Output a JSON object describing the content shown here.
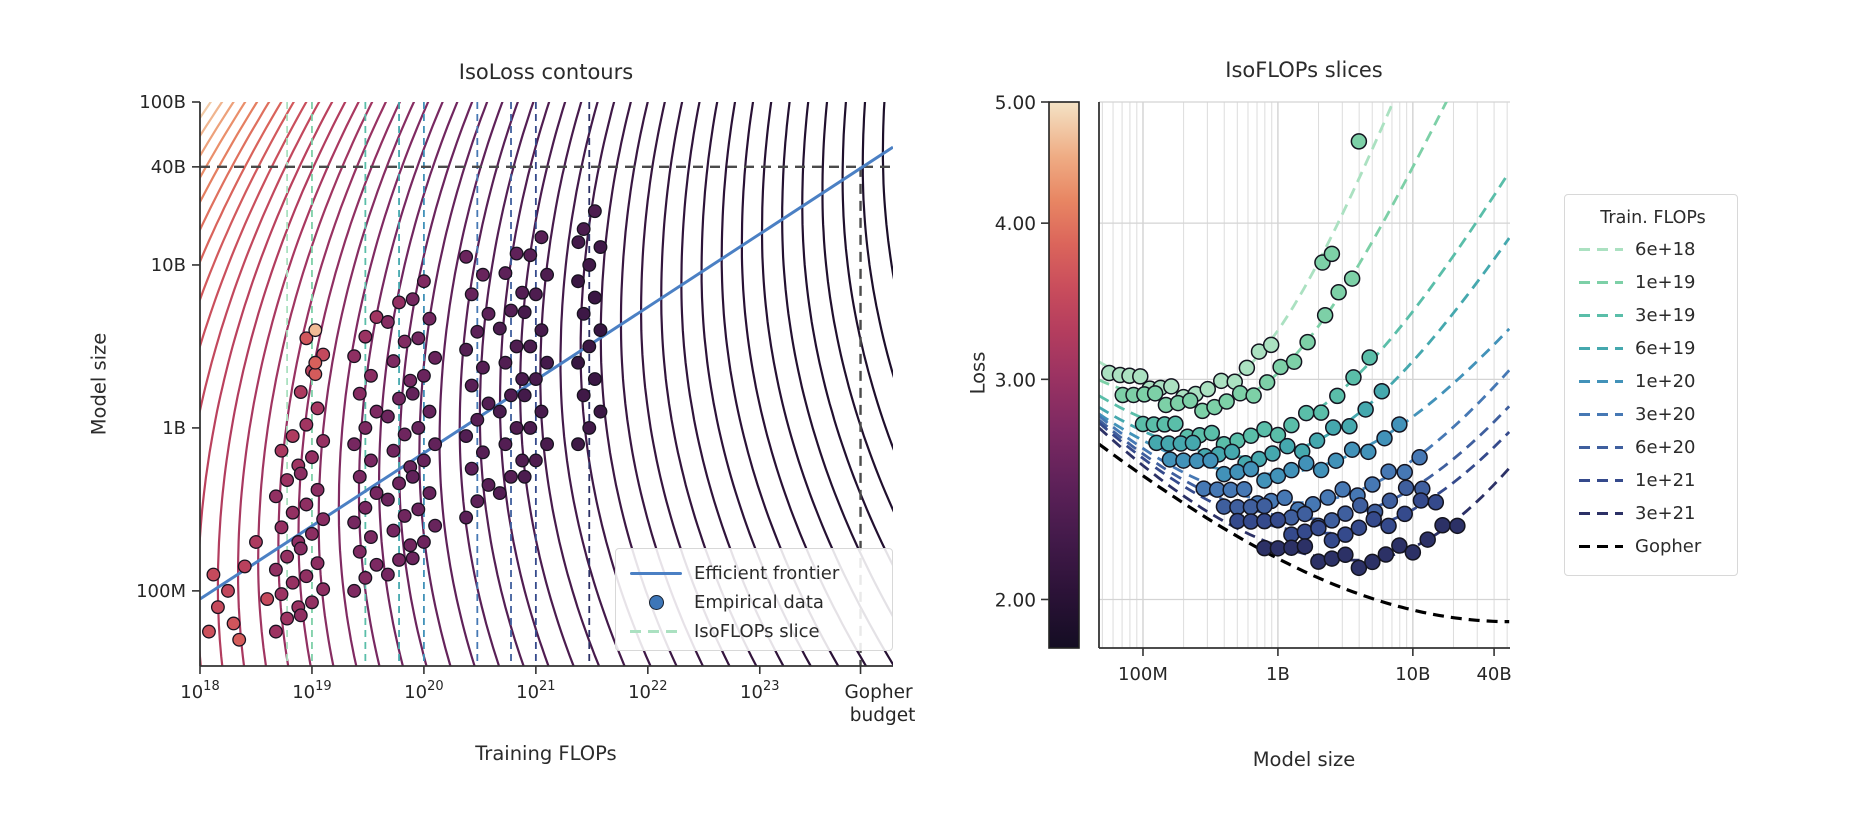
{
  "figure": {
    "background": "#ffffff"
  },
  "chart_data": [
    {
      "type": "contour-scatter",
      "title": "IsoLoss contours",
      "xlabel": "Training FLOPs",
      "ylabel": "Model size",
      "xlim_log10": [
        18.0,
        24.19
      ],
      "ylim_log10": [
        7.539,
        11.0
      ],
      "x_ticks": [
        {
          "log": 18,
          "base": "10",
          "exp": "18"
        },
        {
          "log": 19,
          "base": "10",
          "exp": "19"
        },
        {
          "log": 20,
          "base": "10",
          "exp": "20"
        },
        {
          "log": 21,
          "base": "10",
          "exp": "21"
        },
        {
          "log": 22,
          "base": "10",
          "exp": "22"
        },
        {
          "log": 23,
          "base": "10",
          "exp": "23"
        }
      ],
      "gopher_tick": {
        "log": 23.9,
        "line1": "Gopher",
        "line2": "budget"
      },
      "y_ticks": [
        {
          "log": 8.0,
          "label": "100M"
        },
        {
          "log": 9.0,
          "label": "1B"
        },
        {
          "log": 10.0,
          "label": "10B"
        },
        {
          "log": 10.602,
          "label": "40B"
        },
        {
          "log": 11.0,
          "label": "100B"
        }
      ],
      "frontier": {
        "label": "Efficient frontier",
        "color": "#4B80C4",
        "logN_at_18": 7.95,
        "slope": 0.448
      },
      "ref_lines": {
        "color": "#4a4a4a",
        "h_logN": 10.602,
        "v_logC": 23.9
      },
      "contours": {
        "v_start": 16.0,
        "v_end": 26.0,
        "step": 0.18,
        "w_up": 7.8,
        "w_dn": 6.0,
        "loss_base": 1.69,
        "loss_coef": 1.26,
        "loss_rate": -0.15,
        "loss_ref": 18.78
      },
      "extra_points": [
        [
          18.08,
          7.75,
          3.6
        ],
        [
          18.16,
          7.9,
          3.5
        ],
        [
          18.25,
          8.0,
          3.45
        ],
        [
          18.12,
          8.1,
          3.5
        ],
        [
          18.3,
          7.8,
          3.65
        ],
        [
          18.4,
          8.15,
          3.35
        ],
        [
          18.35,
          7.7,
          3.75
        ],
        [
          18.5,
          8.3,
          3.2
        ],
        [
          18.6,
          7.95,
          3.5
        ],
        [
          21.38,
          10.14,
          2.24
        ]
      ]
    },
    {
      "type": "isoflop-slices",
      "title": "IsoFLOPs slices",
      "xlabel": "Model size",
      "ylabel": "Loss",
      "xlim_log10": [
        7.674,
        10.72
      ],
      "loss_lim": [
        1.829,
        5.0
      ],
      "x_ticks": [
        {
          "log": 8.0,
          "label": "100M"
        },
        {
          "log": 9.0,
          "label": "1B"
        },
        {
          "log": 10.0,
          "label": "10B"
        },
        {
          "log": 10.602,
          "label": "40B"
        }
      ],
      "colorbar_ticks": [
        {
          "loss": 5.0,
          "label": "5.00"
        },
        {
          "loss": 4.0,
          "label": "4.00"
        },
        {
          "loss": 3.0,
          "label": "3.00"
        },
        {
          "loss": 2.0,
          "label": "2.00"
        }
      ],
      "legend_title": "Train. FLOPs",
      "grid": true
    }
  ],
  "series": [
    {
      "label": "6e+18",
      "color": "#ABE1C1",
      "logC": 18.778,
      "lmin": 2.93,
      "m": 8.4,
      "aL": 0.32,
      "aR": 0.98,
      "x": [
        7.75,
        7.83,
        7.9,
        7.98,
        8.05,
        8.13,
        8.21,
        8.3,
        8.39,
        8.48,
        8.58,
        8.68,
        8.77,
        8.86,
        8.95
      ],
      "outliers": []
    },
    {
      "label": "1e+19",
      "color": "#7DD0A7",
      "logC": 19.0,
      "lmin": 2.86,
      "m": 8.5,
      "aL": 0.2,
      "aR": 0.7,
      "x": [
        7.85,
        7.93,
        8.01,
        8.09,
        8.17,
        8.26,
        8.35,
        8.44,
        8.53,
        8.62,
        8.72,
        8.82,
        8.92,
        9.02,
        9.12,
        9.22,
        9.35,
        9.45,
        9.55
      ],
      "outliers": [
        [
          9.33,
          3.72
        ],
        [
          9.4,
          3.78
        ],
        [
          9.6,
          4.65
        ]
      ]
    },
    {
      "label": "3e+19",
      "color": "#5ABEA9",
      "logC": 19.477,
      "lmin": 2.69,
      "m": 8.7,
      "aL": 0.21,
      "aR": 0.42,
      "x": [
        8.0,
        8.08,
        8.16,
        8.24,
        8.33,
        8.42,
        8.51,
        8.6,
        8.7,
        8.8,
        8.9,
        9.0,
        9.1,
        9.21,
        9.32,
        9.44,
        9.56,
        9.68
      ],
      "outliers": []
    },
    {
      "label": "6e+19",
      "color": "#45A8AE",
      "logC": 19.778,
      "lmin": 2.6,
      "m": 8.82,
      "aL": 0.19,
      "aR": 0.36,
      "x": [
        8.1,
        8.19,
        8.28,
        8.37,
        8.46,
        8.56,
        8.66,
        8.76,
        8.86,
        8.96,
        9.07,
        9.18,
        9.29,
        9.41,
        9.53,
        9.65,
        9.77
      ],
      "outliers": []
    },
    {
      "label": "1e+20",
      "color": "#4292B9",
      "logC": 20.0,
      "lmin": 2.52,
      "m": 8.92,
      "aL": 0.19,
      "aR": 0.24,
      "x": [
        8.2,
        8.3,
        8.4,
        8.5,
        8.6,
        8.7,
        8.8,
        8.9,
        9.0,
        9.1,
        9.21,
        9.32,
        9.43,
        9.55,
        9.67,
        9.79,
        9.9
      ],
      "outliers": []
    },
    {
      "label": "3e+20",
      "color": "#4678B4",
      "logC": 20.477,
      "lmin": 2.39,
      "m": 9.15,
      "aL": 0.19,
      "aR": 0.27,
      "x": [
        8.45,
        8.55,
        8.65,
        8.75,
        8.85,
        8.95,
        9.05,
        9.15,
        9.26,
        9.37,
        9.48,
        9.59,
        9.7,
        9.82,
        9.94,
        10.05
      ],
      "outliers": []
    },
    {
      "label": "6e+20",
      "color": "#3F5F9E",
      "logC": 20.778,
      "lmin": 2.32,
      "m": 9.28,
      "aL": 0.18,
      "aR": 0.26,
      "x": [
        8.6,
        8.7,
        8.8,
        8.9,
        9.0,
        9.1,
        9.2,
        9.3,
        9.4,
        9.5,
        9.61,
        9.72,
        9.83,
        9.95,
        10.07
      ],
      "outliers": []
    },
    {
      "label": "1e+21",
      "color": "#354A8C",
      "logC": 21.0,
      "lmin": 2.26,
      "m": 9.38,
      "aL": 0.175,
      "aR": 0.26,
      "x": [
        8.7,
        8.8,
        8.9,
        9.0,
        9.1,
        9.2,
        9.3,
        9.4,
        9.5,
        9.6,
        9.71,
        9.82,
        9.94,
        10.06,
        10.17
      ],
      "outliers": []
    },
    {
      "label": "3e+21",
      "color": "#2C3166",
      "logC": 21.477,
      "lmin": 2.15,
      "m": 9.6,
      "aL": 0.16,
      "aR": 0.32,
      "x": [
        8.9,
        9.0,
        9.1,
        9.2,
        9.3,
        9.4,
        9.5,
        9.6,
        9.7,
        9.8,
        9.9,
        10.0,
        10.11,
        10.22,
        10.33
      ],
      "outliers": []
    },
    {
      "label": "Gopher",
      "color": "#000000",
      "logC": 23.9,
      "lmin": 1.92,
      "m": 10.72,
      "aL": 0.08,
      "aR": 0.3,
      "x": [],
      "outliers": [],
      "gopher": true
    }
  ],
  "rocket_stops": [
    [
      0.0,
      "#140D23"
    ],
    [
      0.1,
      "#2B1237"
    ],
    [
      0.2,
      "#431A4A"
    ],
    [
      0.3,
      "#5E2159"
    ],
    [
      0.4,
      "#7C2962"
    ],
    [
      0.5,
      "#9C3362"
    ],
    [
      0.58,
      "#B43D5E"
    ],
    [
      0.66,
      "#C94D5C"
    ],
    [
      0.74,
      "#DB655B"
    ],
    [
      0.82,
      "#E88663"
    ],
    [
      0.9,
      "#EFAC84"
    ],
    [
      1.0,
      "#F4E3C5"
    ]
  ],
  "color_loss_map": {
    "log_lo": 0.262,
    "log_hi": 0.699
  },
  "left_legend": {
    "items": [
      {
        "type": "line",
        "color": "#4B80C4",
        "label": "Efficient frontier"
      },
      {
        "type": "dot",
        "color": "#3D76B8",
        "label": "Empirical data"
      },
      {
        "type": "dash",
        "color": "#ABE1C1",
        "label": "IsoFLOPs slice"
      }
    ]
  }
}
